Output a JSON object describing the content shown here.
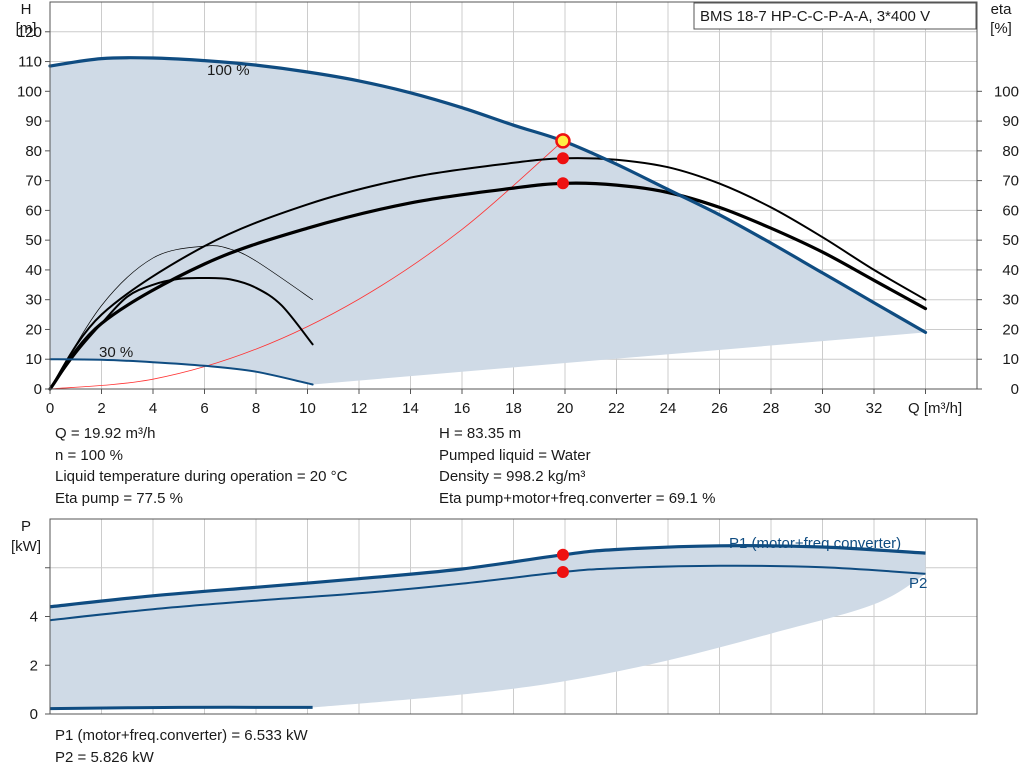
{
  "pump_model": "BMS 18-7 HP-C-C-P-A-A, 3*400 V",
  "head_chart": {
    "y_label_name": "H",
    "y_label_unit": "[m]",
    "y2_label_name": "eta",
    "y2_label_unit": "[%]",
    "x_label": "Q [m³/h]",
    "speed_label_max": "100 %",
    "speed_label_min": "30 %"
  },
  "info_left": [
    "Q = 19.92 m³/h",
    "n = 100 %",
    "Liquid temperature during operation = 20 °C",
    "Eta pump = 77.5 %"
  ],
  "info_right": [
    "H = 83.35 m",
    "Pumped liquid = Water",
    "Density = 998.2 kg/m³",
    "Eta pump+motor+freq.converter = 69.1 %"
  ],
  "power_chart": {
    "y_label_name": "P",
    "y_label_unit": "[kW]",
    "p1_label": "P1 (motor+freq.converter)",
    "p2_label": "P2"
  },
  "info_bottom": [
    "P1 (motor+freq.converter) = 6.533 kW",
    "P2 = 5.826 kW"
  ],
  "colors": {
    "curve_blue": "#0f4c81",
    "area_fill": "#cfdae6",
    "grid": "#cccccc",
    "eta_curve": "#000000",
    "system_curve": "#ff3333",
    "duty_point": "#ee1111",
    "duty_point_highlight": "#ffee44"
  },
  "chart_data": [
    {
      "type": "line",
      "name_ref": "head_chart",
      "x": {
        "min": 0,
        "max": 36,
        "ticks": [
          0,
          2,
          4,
          6,
          8,
          10,
          12,
          14,
          16,
          18,
          20,
          22,
          24,
          26,
          28,
          30,
          32
        ]
      },
      "y_left": {
        "min": 0,
        "max": 130,
        "ticks": [
          0,
          10,
          20,
          30,
          40,
          50,
          60,
          70,
          80,
          90,
          100,
          110,
          120
        ]
      },
      "y_right": {
        "min": 0,
        "max": 130,
        "ticks": [
          0,
          10,
          20,
          30,
          40,
          50,
          60,
          70,
          80,
          90,
          100
        ]
      },
      "grid": true,
      "series": [
        {
          "name": "100 %",
          "kind": "head",
          "points": [
            [
              0,
              108.5
            ],
            [
              2,
              111
            ],
            [
              4,
              111.2
            ],
            [
              6,
              110.3
            ],
            [
              8,
              108.8
            ],
            [
              10,
              106.5
            ],
            [
              12,
              103.5
            ],
            [
              14,
              99.5
            ],
            [
              16,
              94.5
            ],
            [
              18,
              88.6
            ],
            [
              19.92,
              83.35
            ],
            [
              22,
              75.5
            ],
            [
              24,
              67
            ],
            [
              26,
              58.5
            ],
            [
              28,
              49
            ],
            [
              30,
              39
            ],
            [
              32,
              29
            ],
            [
              34,
              19
            ]
          ]
        },
        {
          "name": "30 %",
          "kind": "head",
          "points": [
            [
              0,
              10
            ],
            [
              2,
              9.8
            ],
            [
              4,
              9
            ],
            [
              6,
              7.8
            ],
            [
              8,
              5.8
            ],
            [
              10.2,
              1.5
            ]
          ]
        },
        {
          "kind": "min-head-boundary",
          "points": [
            [
              10.2,
              1.5
            ],
            [
              34,
              19
            ]
          ]
        },
        {
          "kind": "eta-pump",
          "points": [
            [
              0,
              0
            ],
            [
              2,
              25
            ],
            [
              6,
              48
            ],
            [
              10,
              62
            ],
            [
              14,
              71
            ],
            [
              18,
              76
            ],
            [
              20,
              77.5
            ],
            [
              22,
              77
            ],
            [
              24,
              74.5
            ],
            [
              26,
              69
            ],
            [
              28,
              61
            ],
            [
              30,
              51
            ],
            [
              32,
              40
            ],
            [
              34,
              30
            ]
          ]
        },
        {
          "kind": "eta-pump+motor+freq.converter",
          "points": [
            [
              0,
              0
            ],
            [
              2,
              22
            ],
            [
              6,
              42
            ],
            [
              10,
              54
            ],
            [
              14,
              62.5
            ],
            [
              18,
              67.5
            ],
            [
              20,
              69.1
            ],
            [
              22,
              68.5
            ],
            [
              24,
              66
            ],
            [
              26,
              61
            ],
            [
              28,
              54
            ],
            [
              30,
              46
            ],
            [
              32,
              36.5
            ],
            [
              34,
              27
            ]
          ]
        },
        {
          "kind": "eta-pump-reduced-speed",
          "points": [
            [
              0,
              0
            ],
            [
              2,
              28
            ],
            [
              4,
              44
            ],
            [
              6,
              48
            ],
            [
              7,
              47
            ],
            [
              8,
              43
            ],
            [
              10.2,
              30
            ]
          ]
        },
        {
          "kind": "eta-total-reduced-speed",
          "points": [
            [
              0,
              0
            ],
            [
              1,
              12
            ],
            [
              2,
              22
            ],
            [
              3,
              31
            ],
            [
              4,
              35
            ],
            [
              5,
              37
            ],
            [
              6,
              37.3
            ],
            [
              7,
              36.8
            ],
            [
              8,
              34
            ],
            [
              9,
              28
            ],
            [
              10.2,
              15
            ]
          ]
        },
        {
          "kind": "system-curve",
          "points": [
            [
              0,
              0
            ],
            [
              4,
              3.3
            ],
            [
              8,
              13.4
            ],
            [
              12,
              30.2
            ],
            [
              16,
              53.6
            ],
            [
              19.92,
              83.35
            ]
          ]
        }
      ],
      "duty_points": [
        {
          "x": 19.92,
          "y": 83.35,
          "label": "H"
        },
        {
          "x": 19.92,
          "y": 77.5,
          "label": "Eta pump"
        },
        {
          "x": 19.92,
          "y": 69.1,
          "label": "Eta pump+motor+freq.converter"
        }
      ]
    },
    {
      "type": "line",
      "name_ref": "power_chart",
      "x": {
        "min": 0,
        "max": 36
      },
      "y": {
        "min": 0,
        "max": 8,
        "ticks": [
          0,
          2,
          4
        ]
      },
      "grid": true,
      "series": [
        {
          "name": "P1 (motor+freq.converter)",
          "points": [
            [
              0,
              4.4
            ],
            [
              4,
              4.85
            ],
            [
              8,
              5.2
            ],
            [
              12,
              5.55
            ],
            [
              16,
              5.95
            ],
            [
              19.92,
              6.533
            ],
            [
              22,
              6.75
            ],
            [
              26,
              6.9
            ],
            [
              30,
              6.85
            ],
            [
              34,
              6.6
            ]
          ]
        },
        {
          "name": "P2",
          "points": [
            [
              0,
              3.85
            ],
            [
              4,
              4.3
            ],
            [
              8,
              4.65
            ],
            [
              12,
              4.95
            ],
            [
              16,
              5.35
            ],
            [
              19.92,
              5.826
            ],
            [
              22,
              5.98
            ],
            [
              26,
              6.08
            ],
            [
              30,
              6.02
            ],
            [
              34,
              5.75
            ]
          ]
        },
        {
          "kind": "min-speed-power",
          "points": [
            [
              0,
              0.22
            ],
            [
              5,
              0.27
            ],
            [
              10.2,
              0.27
            ]
          ]
        },
        {
          "kind": "area-lower-boundary",
          "points": [
            [
              10.2,
              0.27
            ],
            [
              16,
              0.8
            ],
            [
              20,
              1.35
            ],
            [
              24,
              2.2
            ],
            [
              28,
              3.3
            ],
            [
              32,
              4.5
            ],
            [
              34,
              5.75
            ]
          ]
        }
      ],
      "duty_points": [
        {
          "x": 19.92,
          "y": 6.533,
          "label": "P1"
        },
        {
          "x": 19.92,
          "y": 5.826,
          "label": "P2"
        }
      ]
    }
  ]
}
